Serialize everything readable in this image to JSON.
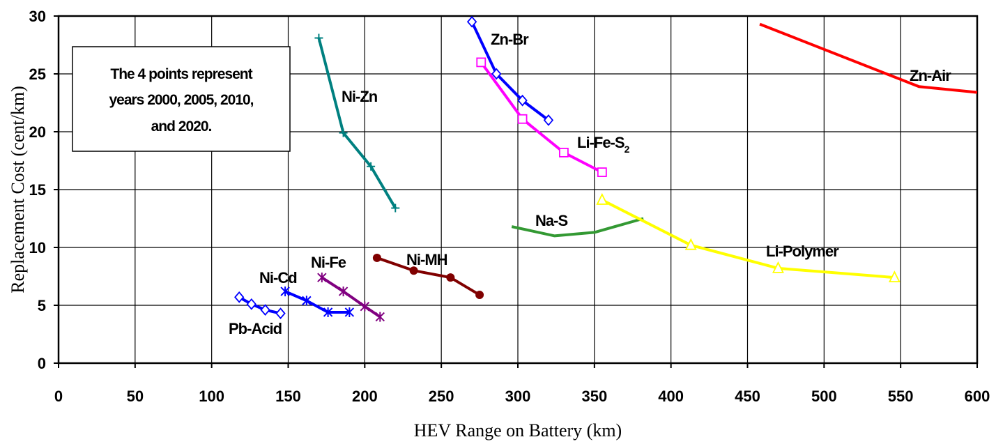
{
  "chart_data": {
    "type": "line",
    "xlabel": "HEV Range on Battery (km)",
    "ylabel": "Replacement Cost (cent/km)",
    "xlim": [
      0,
      600
    ],
    "ylim": [
      0,
      30
    ],
    "xticks": [
      "0",
      "50",
      "100",
      "150",
      "200",
      "250",
      "300",
      "350",
      "400",
      "450",
      "500",
      "550",
      "600"
    ],
    "yticks": [
      "0",
      "5",
      "10",
      "15",
      "20",
      "25",
      "30"
    ],
    "grid": true,
    "annotation": [
      "The 4 points represent",
      "years 2000, 2005, 2010,",
      "and 2020."
    ],
    "series": [
      {
        "name": "Pb-Acid",
        "color": "#0000ff",
        "marker": "diamond",
        "points": [
          [
            118,
            5.7
          ],
          [
            126,
            5.1
          ],
          [
            135,
            4.6
          ],
          [
            145,
            4.3
          ]
        ]
      },
      {
        "name": "Ni-Cd",
        "color": "#0000ff",
        "marker": "star",
        "points": [
          [
            148,
            6.2
          ],
          [
            162,
            5.4
          ],
          [
            176,
            4.4
          ],
          [
            190,
            4.4
          ]
        ]
      },
      {
        "name": "Ni-Fe",
        "color": "#800080",
        "marker": "star",
        "points": [
          [
            172,
            7.4
          ],
          [
            186,
            6.2
          ],
          [
            200,
            4.9
          ],
          [
            210,
            4.0
          ]
        ]
      },
      {
        "name": "Ni-MH",
        "color": "#800000",
        "marker": "circle",
        "points": [
          [
            208,
            9.1
          ],
          [
            232,
            8.0
          ],
          [
            256,
            7.4
          ],
          [
            275,
            5.9
          ]
        ]
      },
      {
        "name": "Ni-Zn",
        "color": "#008080",
        "marker": "cross",
        "points": [
          [
            170,
            28.1
          ],
          [
            186,
            19.9
          ],
          [
            204,
            17.0
          ],
          [
            220,
            13.4
          ]
        ]
      },
      {
        "name": "Zn-Br",
        "color": "#0000ff",
        "marker": "diamond",
        "points": [
          [
            270,
            29.5
          ],
          [
            286,
            25.0
          ],
          [
            303,
            22.7
          ],
          [
            320,
            21.0
          ]
        ]
      },
      {
        "name": "Li-Fe-S2",
        "color": "#ff00ff",
        "marker": "square",
        "points": [
          [
            276,
            26.0
          ],
          [
            303,
            21.1
          ],
          [
            330,
            18.2
          ],
          [
            355,
            16.5
          ]
        ]
      },
      {
        "name": "Na-S",
        "color": "#339933",
        "marker": "none",
        "points": [
          [
            296,
            11.8
          ],
          [
            324,
            11.0
          ],
          [
            350,
            11.3
          ],
          [
            382,
            12.5
          ]
        ]
      },
      {
        "name": "Li-Polymer",
        "color": "#ffff00",
        "marker": "triangle",
        "points": [
          [
            355,
            14.1
          ],
          [
            413,
            10.2
          ],
          [
            470,
            8.2
          ],
          [
            546,
            7.4
          ]
        ]
      },
      {
        "name": "Zn-Air",
        "color": "#ff0000",
        "marker": "none",
        "points": [
          [
            458,
            29.3
          ],
          [
            562,
            23.9
          ],
          [
            600,
            23.4
          ]
        ]
      }
    ]
  },
  "labels": {
    "pb_acid": "Pb-Acid",
    "ni_cd": "Ni-Cd",
    "ni_fe": "Ni-Fe",
    "ni_mh": "Ni-MH",
    "ni_zn": "Ni-Zn",
    "zn_br": "Zn-Br",
    "li_fe_s": "Li-Fe-S",
    "li_fe_s_sub": "2",
    "na_s": "Na-S",
    "li_polymer": "Li-Polymer",
    "zn_air": "Zn-Air"
  }
}
